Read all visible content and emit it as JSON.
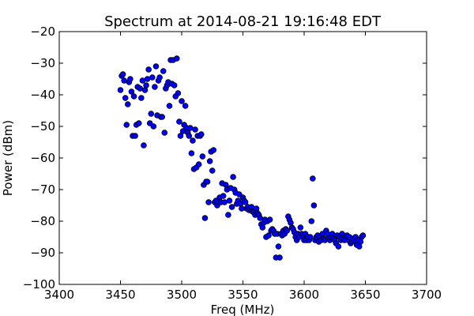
{
  "chart_data": {
    "type": "scatter",
    "title": "Spectrum at 2014-08-21 19:16:48 EDT",
    "xlabel": "Freq (MHz)",
    "ylabel": "Power (dBm)",
    "xlim": [
      3400,
      3700
    ],
    "ylim": [
      -100,
      -20
    ],
    "xticks": [
      3400,
      3450,
      3500,
      3550,
      3600,
      3650,
      3700
    ],
    "yticks": [
      -100,
      -90,
      -80,
      -70,
      -60,
      -50,
      -40,
      -30,
      -20
    ],
    "grid": false,
    "marker_color": "#0000ff",
    "marker_edge_color": "#000000",
    "series": [
      {
        "points": [
          [
            3450,
            -38.5
          ],
          [
            3451,
            -34
          ],
          [
            3452,
            -33.5
          ],
          [
            3453,
            -35.5
          ],
          [
            3454,
            -41
          ],
          [
            3455,
            -49.5
          ],
          [
            3456,
            -43
          ],
          [
            3457,
            -36
          ],
          [
            3458,
            -35
          ],
          [
            3459,
            -39
          ],
          [
            3460,
            -53
          ],
          [
            3461,
            -40.5
          ],
          [
            3462,
            -53
          ],
          [
            3463,
            -49.5
          ],
          [
            3464,
            -37.5
          ],
          [
            3465,
            -49
          ],
          [
            3466,
            -38
          ],
          [
            3467,
            -41
          ],
          [
            3468,
            -35.5
          ],
          [
            3469,
            -56
          ],
          [
            3470,
            -38.5
          ],
          [
            3471,
            -37
          ],
          [
            3472,
            -35
          ],
          [
            3473,
            -32
          ],
          [
            3474,
            -49
          ],
          [
            3475,
            -46
          ],
          [
            3476,
            -34.5
          ],
          [
            3477,
            -50
          ],
          [
            3478,
            -37.5
          ],
          [
            3479,
            -31
          ],
          [
            3480,
            -46.5
          ],
          [
            3481,
            -35.5
          ],
          [
            3482,
            -34.5
          ],
          [
            3483,
            -47
          ],
          [
            3484,
            -47
          ],
          [
            3485,
            -32.5
          ],
          [
            3486,
            -52
          ],
          [
            3487,
            -38
          ],
          [
            3488,
            -37
          ],
          [
            3489,
            -36
          ],
          [
            3490,
            -43.5
          ],
          [
            3491,
            -29
          ],
          [
            3492,
            -36.5
          ],
          [
            3493,
            -29
          ],
          [
            3494,
            -37
          ],
          [
            3495,
            -40.5
          ],
          [
            3496,
            -28.5
          ],
          [
            3497,
            -39.5
          ],
          [
            3498,
            -48.5
          ],
          [
            3499,
            -53
          ],
          [
            3500,
            -42
          ],
          [
            3501,
            -51.5
          ],
          [
            3502,
            -49.5
          ],
          [
            3503,
            -43.5
          ],
          [
            3504,
            -50.5
          ],
          [
            3505,
            -52
          ],
          [
            3506,
            -53
          ],
          [
            3507,
            -50.5
          ],
          [
            3508,
            -58.5
          ],
          [
            3509,
            -54.5
          ],
          [
            3510,
            -63.5
          ],
          [
            3511,
            -51
          ],
          [
            3512,
            -63
          ],
          [
            3513,
            -53
          ],
          [
            3514,
            -62
          ],
          [
            3515,
            -53
          ],
          [
            3516,
            -52.5
          ],
          [
            3517,
            -59.5
          ],
          [
            3518,
            -68.5
          ],
          [
            3519,
            -79
          ],
          [
            3520,
            -67.5
          ],
          [
            3521,
            -67.5
          ],
          [
            3522,
            -74
          ],
          [
            3523,
            -61
          ],
          [
            3524,
            -58
          ],
          [
            3525,
            -64
          ],
          [
            3526,
            -57.5
          ],
          [
            3527,
            -74
          ],
          [
            3528,
            -73.5
          ],
          [
            3529,
            -75
          ],
          [
            3530,
            -74
          ],
          [
            3531,
            -72.5
          ],
          [
            3532,
            -74
          ],
          [
            3533,
            -68
          ],
          [
            3534,
            -72
          ],
          [
            3535,
            -74
          ],
          [
            3536,
            -68.5
          ],
          [
            3537,
            -70
          ],
          [
            3538,
            -78
          ],
          [
            3539,
            -73.5
          ],
          [
            3540,
            -69.5
          ],
          [
            3541,
            -75.5
          ],
          [
            3542,
            -66
          ],
          [
            3543,
            -70
          ],
          [
            3544,
            -71
          ],
          [
            3545,
            -74.5
          ],
          [
            3546,
            -73.5
          ],
          [
            3547,
            -71.5
          ],
          [
            3548,
            -74.5
          ],
          [
            3549,
            -76
          ],
          [
            3550,
            -72.5
          ],
          [
            3551,
            -73.5
          ],
          [
            3552,
            -74
          ],
          [
            3553,
            -76
          ],
          [
            3554,
            -75.5
          ],
          [
            3555,
            -76.5
          ],
          [
            3556,
            -76
          ],
          [
            3557,
            -75.5
          ],
          [
            3558,
            -77
          ],
          [
            3559,
            -77
          ],
          [
            3560,
            -78
          ],
          [
            3561,
            -76
          ],
          [
            3562,
            -77.5
          ],
          [
            3563,
            -78
          ],
          [
            3564,
            -79
          ],
          [
            3565,
            -81
          ],
          [
            3566,
            -82
          ],
          [
            3567,
            -80.5
          ],
          [
            3568,
            -79.5
          ],
          [
            3569,
            -85
          ],
          [
            3570,
            -80
          ],
          [
            3571,
            -84.5
          ],
          [
            3572,
            -79.5
          ],
          [
            3573,
            -83
          ],
          [
            3574,
            -82.5
          ],
          [
            3575,
            -83
          ],
          [
            3576,
            -84
          ],
          [
            3577,
            -91.5
          ],
          [
            3578,
            -84
          ],
          [
            3579,
            -88
          ],
          [
            3580,
            -91.5
          ],
          [
            3581,
            -84
          ],
          [
            3582,
            -84.5
          ],
          [
            3583,
            -83
          ],
          [
            3584,
            -84
          ],
          [
            3585,
            -82.5
          ],
          [
            3586,
            -83
          ],
          [
            3587,
            -78.5
          ],
          [
            3588,
            -79.5
          ],
          [
            3589,
            -80.5
          ],
          [
            3590,
            -82
          ],
          [
            3591,
            -82.5
          ],
          [
            3592,
            -83.5
          ],
          [
            3593,
            -85
          ],
          [
            3594,
            -86
          ],
          [
            3595,
            -84
          ],
          [
            3596,
            -85
          ],
          [
            3597,
            -82
          ],
          [
            3598,
            -84
          ],
          [
            3599,
            -84.5
          ],
          [
            3600,
            -86
          ],
          [
            3601,
            -84
          ],
          [
            3602,
            -86
          ],
          [
            3603,
            -85
          ],
          [
            3604,
            -86
          ],
          [
            3605,
            -85
          ],
          [
            3606,
            -80
          ],
          [
            3607,
            -66.5
          ],
          [
            3608,
            -75
          ],
          [
            3609,
            -86
          ],
          [
            3610,
            -85
          ],
          [
            3611,
            -84.5
          ],
          [
            3612,
            -86.5
          ],
          [
            3613,
            -85
          ],
          [
            3614,
            -86
          ],
          [
            3615,
            -84
          ],
          [
            3616,
            -85.5
          ],
          [
            3617,
            -86
          ],
          [
            3618,
            -83
          ],
          [
            3619,
            -84
          ],
          [
            3620,
            -85.5
          ],
          [
            3621,
            -86
          ],
          [
            3622,
            -85
          ],
          [
            3623,
            -84
          ],
          [
            3624,
            -85.5
          ],
          [
            3625,
            -86
          ],
          [
            3626,
            -87
          ],
          [
            3627,
            -84.5
          ],
          [
            3628,
            -88
          ],
          [
            3629,
            -85
          ],
          [
            3630,
            -86
          ],
          [
            3631,
            -84
          ],
          [
            3632,
            -85.5
          ],
          [
            3633,
            -86
          ],
          [
            3634,
            -85
          ],
          [
            3635,
            -84.5
          ],
          [
            3636,
            -86
          ],
          [
            3637,
            -85
          ],
          [
            3638,
            -87
          ],
          [
            3639,
            -86.5
          ],
          [
            3640,
            -85.5
          ],
          [
            3641,
            -86
          ],
          [
            3642,
            -85
          ],
          [
            3643,
            -87.5
          ],
          [
            3644,
            -86
          ],
          [
            3645,
            -88
          ],
          [
            3646,
            -86.5
          ],
          [
            3647,
            -85
          ],
          [
            3648,
            -84.5
          ]
        ]
      }
    ]
  }
}
